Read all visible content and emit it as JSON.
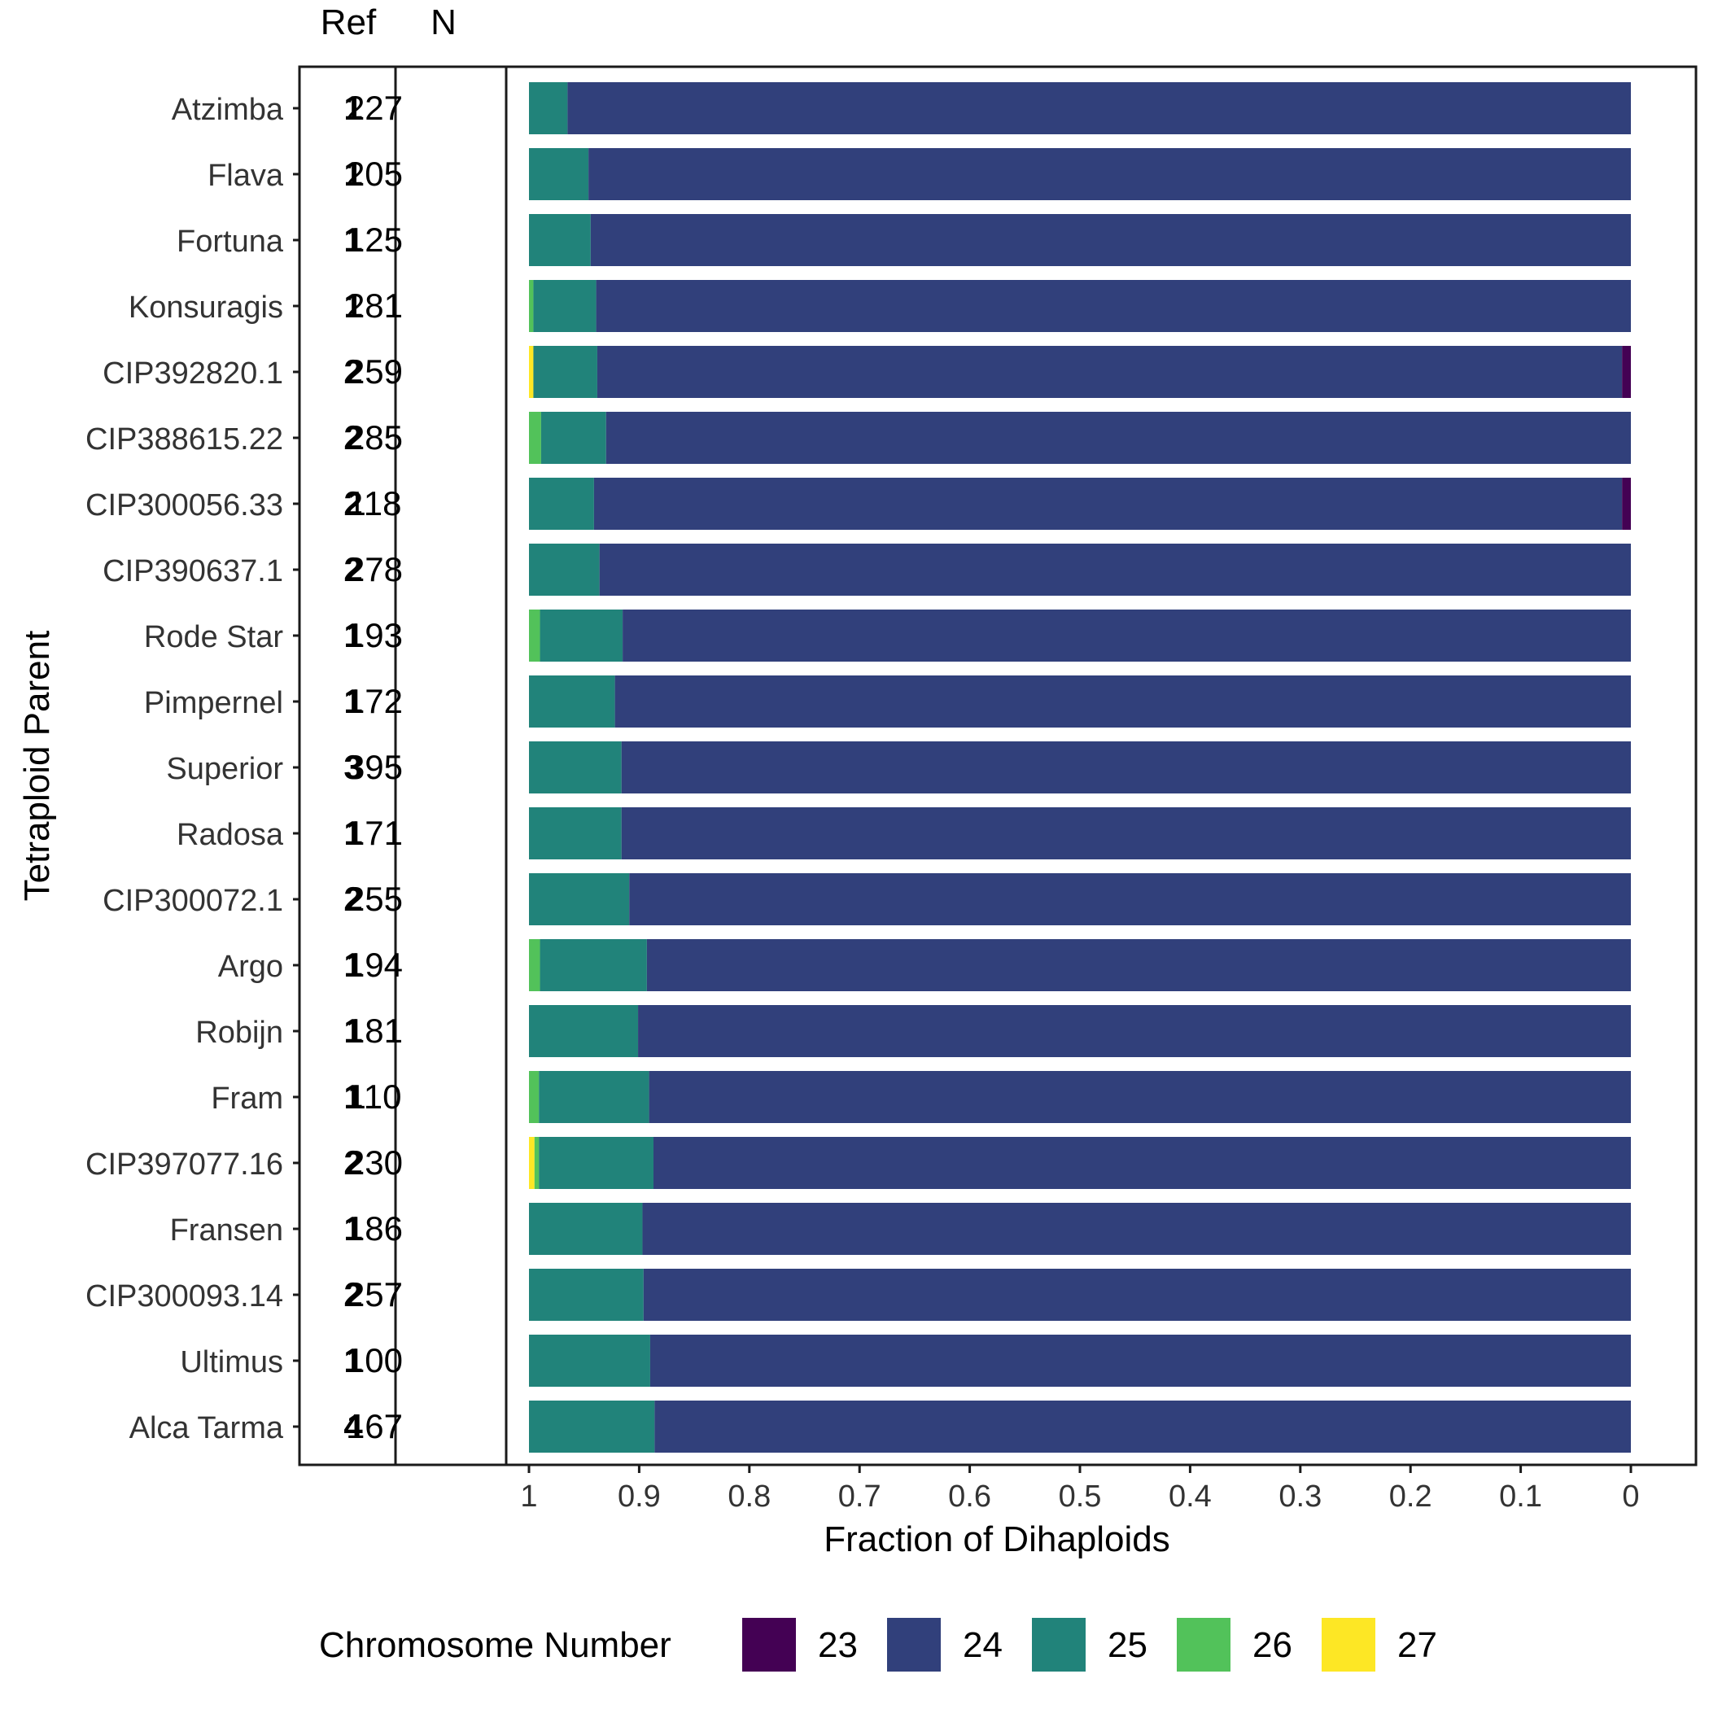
{
  "chart_data": {
    "type": "bar",
    "orientation": "horizontal",
    "stacked": true,
    "x_reversed": true,
    "xlabel": "Fraction of Dihaploids",
    "ylabel": "Tetraploid Parent",
    "xlim": [
      1,
      0
    ],
    "x_ticks": [
      "1",
      "0.9",
      "0.8",
      "0.7",
      "0.6",
      "0.5",
      "0.4",
      "0.3",
      "0.2",
      "0.1",
      "0"
    ],
    "column_headers": {
      "ref": "Ref",
      "n": "N"
    },
    "legend": {
      "title": "Chromosome Number",
      "position": "bottom",
      "entries": [
        {
          "label": "23",
          "color": "#440154"
        },
        {
          "label": "24",
          "color": "#31407b"
        },
        {
          "label": "25",
          "color": "#21837a"
        },
        {
          "label": "26",
          "color": "#52c25a"
        },
        {
          "label": "27",
          "color": "#fde725"
        }
      ]
    },
    "rows": [
      {
        "parent": "Atzimba",
        "ref": "1",
        "n": "227",
        "fractions": {
          "23": 0.0,
          "24": 0.965,
          "25": 0.035,
          "26": 0.0,
          "27": 0.0
        }
      },
      {
        "parent": "Flava",
        "ref": "1",
        "n": "205",
        "fractions": {
          "23": 0.0,
          "24": 0.946,
          "25": 0.054,
          "26": 0.0,
          "27": 0.0
        }
      },
      {
        "parent": "Fortuna",
        "ref": "1",
        "n": "125",
        "fractions": {
          "23": 0.0,
          "24": 0.944,
          "25": 0.056,
          "26": 0.0,
          "27": 0.0
        }
      },
      {
        "parent": "Konsuragis",
        "ref": "1",
        "n": "281",
        "fractions": {
          "23": 0.0,
          "24": 0.939,
          "25": 0.057,
          "26": 0.004,
          "27": 0.0
        }
      },
      {
        "parent": "CIP392820.1",
        "ref": "2",
        "n": "259",
        "fractions": {
          "23": 0.008,
          "24": 0.93,
          "25": 0.058,
          "26": 0.0,
          "27": 0.004
        }
      },
      {
        "parent": "CIP388615.22",
        "ref": "2",
        "n": "285",
        "fractions": {
          "23": 0.0,
          "24": 0.93,
          "25": 0.059,
          "26": 0.011,
          "27": 0.0
        }
      },
      {
        "parent": "CIP300056.33",
        "ref": "2",
        "n": "118",
        "fractions": {
          "23": 0.008,
          "24": 0.933,
          "25": 0.059,
          "26": 0.0,
          "27": 0.0
        }
      },
      {
        "parent": "CIP390637.1",
        "ref": "2",
        "n": "278",
        "fractions": {
          "23": 0.0,
          "24": 0.936,
          "25": 0.064,
          "26": 0.0,
          "27": 0.0
        }
      },
      {
        "parent": "Rode Star",
        "ref": "1",
        "n": "193",
        "fractions": {
          "23": 0.0,
          "24": 0.915,
          "25": 0.075,
          "26": 0.01,
          "27": 0.0
        }
      },
      {
        "parent": "Pimpernel",
        "ref": "1",
        "n": "172",
        "fractions": {
          "23": 0.0,
          "24": 0.922,
          "25": 0.078,
          "26": 0.0,
          "27": 0.0
        }
      },
      {
        "parent": "Superior",
        "ref": "3",
        "n": "395",
        "fractions": {
          "23": 0.0,
          "24": 0.916,
          "25": 0.084,
          "26": 0.0,
          "27": 0.0
        }
      },
      {
        "parent": "Radosa",
        "ref": "1",
        "n": "171",
        "fractions": {
          "23": 0.0,
          "24": 0.916,
          "25": 0.084,
          "26": 0.0,
          "27": 0.0
        }
      },
      {
        "parent": "CIP300072.1",
        "ref": "2",
        "n": "255",
        "fractions": {
          "23": 0.0,
          "24": 0.909,
          "25": 0.091,
          "26": 0.0,
          "27": 0.0
        }
      },
      {
        "parent": "Argo",
        "ref": "1",
        "n": "194",
        "fractions": {
          "23": 0.0,
          "24": 0.893,
          "25": 0.097,
          "26": 0.01,
          "27": 0.0
        }
      },
      {
        "parent": "Robijn",
        "ref": "1",
        "n": "181",
        "fractions": {
          "23": 0.0,
          "24": 0.901,
          "25": 0.099,
          "26": 0.0,
          "27": 0.0
        }
      },
      {
        "parent": "Fram",
        "ref": "1",
        "n": "110",
        "fractions": {
          "23": 0.0,
          "24": 0.891,
          "25": 0.1,
          "26": 0.009,
          "27": 0.0
        }
      },
      {
        "parent": "CIP397077.16",
        "ref": "2",
        "n": "230",
        "fractions": {
          "23": 0.0,
          "24": 0.887,
          "25": 0.104,
          "26": 0.004,
          "27": 0.005
        }
      },
      {
        "parent": "Fransen",
        "ref": "1",
        "n": "186",
        "fractions": {
          "23": 0.0,
          "24": 0.897,
          "25": 0.103,
          "26": 0.0,
          "27": 0.0
        }
      },
      {
        "parent": "CIP300093.14",
        "ref": "2",
        "n": "257",
        "fractions": {
          "23": 0.0,
          "24": 0.896,
          "25": 0.104,
          "26": 0.0,
          "27": 0.0
        }
      },
      {
        "parent": "Ultimus",
        "ref": "1",
        "n": "100",
        "fractions": {
          "23": 0.0,
          "24": 0.89,
          "25": 0.11,
          "26": 0.0,
          "27": 0.0
        }
      },
      {
        "parent": "Alca Tarma",
        "ref": "4",
        "n": "167",
        "fractions": {
          "23": 0.0,
          "24": 0.886,
          "25": 0.114,
          "26": 0.0,
          "27": 0.0
        }
      }
    ]
  }
}
